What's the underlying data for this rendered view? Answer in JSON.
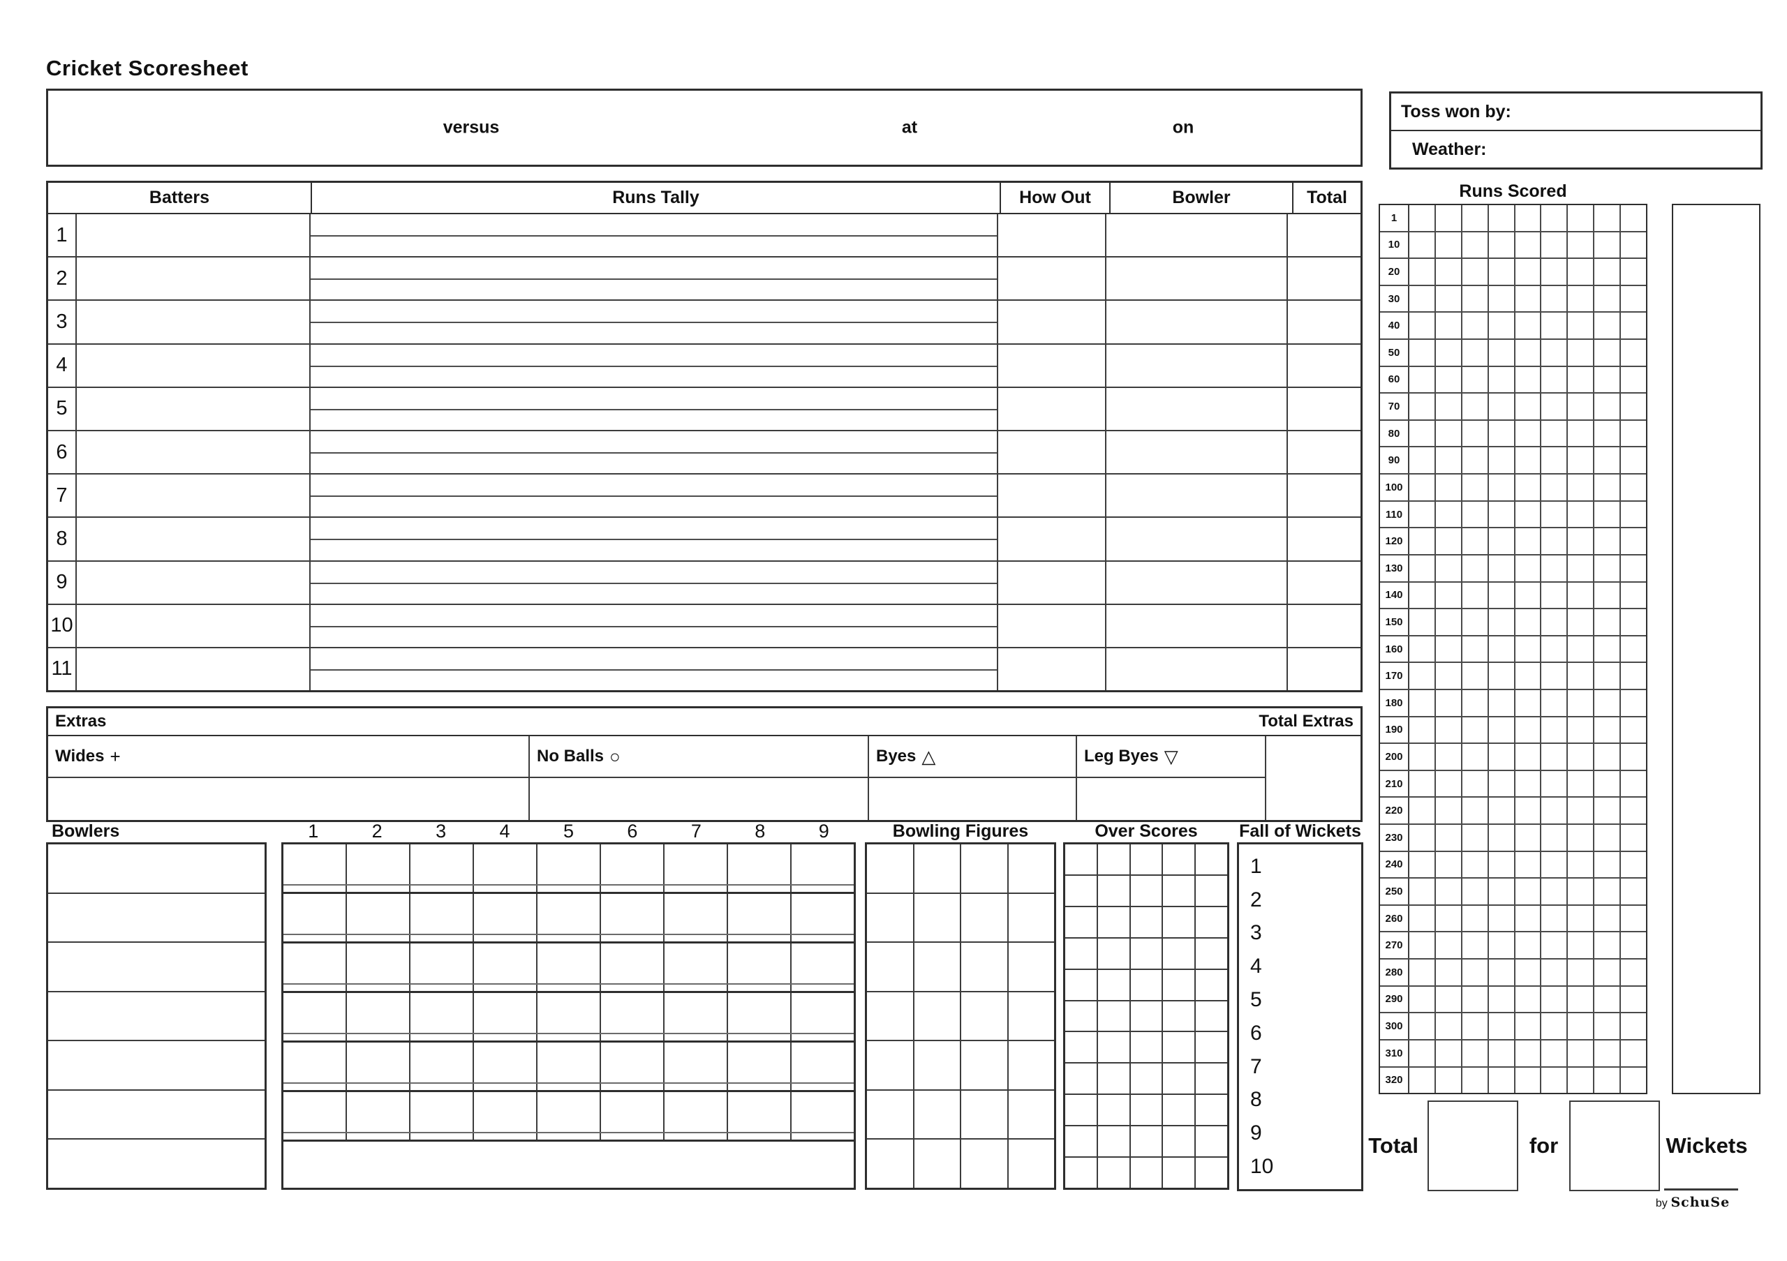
{
  "title": "Cricket Scoresheet",
  "match_header": {
    "versus_label": "versus",
    "at_label": "at",
    "on_label": "on"
  },
  "conditions": {
    "toss_label": "Toss won by:",
    "weather_label": "Weather:"
  },
  "batting": {
    "headers": {
      "batters": "Batters",
      "runs_tally": "Runs Tally",
      "how_out": "How Out",
      "bowler": "Bowler",
      "total": "Total"
    },
    "row_numbers": [
      "1",
      "2",
      "3",
      "4",
      "5",
      "6",
      "7",
      "8",
      "9",
      "10",
      "11"
    ]
  },
  "extras": {
    "section_label": "Extras",
    "total_label": "Total Extras",
    "types": [
      {
        "label": "Wides",
        "symbol": "+"
      },
      {
        "label": "No Balls",
        "symbol": "○"
      },
      {
        "label": "Byes",
        "symbol": "△"
      },
      {
        "label": "Leg Byes",
        "symbol": "▽"
      }
    ]
  },
  "bowling": {
    "bowlers_label": "Bowlers",
    "over_numbers": [
      "1",
      "2",
      "3",
      "4",
      "5",
      "6",
      "7",
      "8",
      "9"
    ],
    "bowler_rows": 7,
    "figures_label": "Bowling Figures",
    "figures_columns": 4,
    "figures_rows": 7,
    "over_scores_label": "Over Scores",
    "over_scores_columns": 5,
    "over_scores_rows": 11,
    "fall_of_wickets_label": "Fall of Wickets",
    "wicket_numbers": [
      "1",
      "2",
      "3",
      "4",
      "5",
      "6",
      "7",
      "8",
      "9",
      "10"
    ]
  },
  "runs_scored": {
    "title": "Runs Scored",
    "cells_per_row": 9,
    "row_labels": [
      "1",
      "10",
      "20",
      "30",
      "40",
      "50",
      "60",
      "70",
      "80",
      "90",
      "100",
      "110",
      "120",
      "130",
      "140",
      "150",
      "160",
      "170",
      "180",
      "190",
      "200",
      "210",
      "220",
      "230",
      "240",
      "250",
      "260",
      "270",
      "280",
      "290",
      "300",
      "310",
      "320"
    ]
  },
  "summary": {
    "total_label": "Total",
    "for_label": "for",
    "wickets_label": "Wickets",
    "credit_by": "by",
    "credit_name": "SchuSe"
  }
}
